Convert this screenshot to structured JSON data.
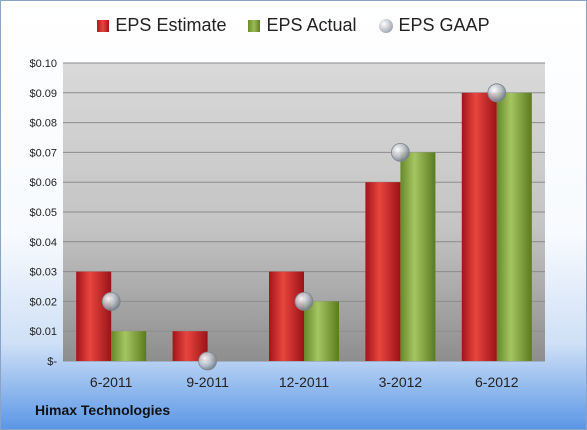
{
  "company": "Himax Technologies",
  "legend": {
    "estimate": "EPS Estimate",
    "actual": "EPS Actual",
    "gaap": "EPS GAAP"
  },
  "colors": {
    "estimate": "#c0252a",
    "actual": "#8fb04a",
    "gaap": "#aeb4bc"
  },
  "chart_data": {
    "type": "bar",
    "categories": [
      "6-2011",
      "9-2011",
      "12-2011",
      "3-2012",
      "6-2012"
    ],
    "series": [
      {
        "name": "EPS Estimate",
        "values": [
          0.03,
          0.01,
          0.03,
          0.06,
          0.09
        ]
      },
      {
        "name": "EPS Actual",
        "values": [
          0.01,
          0.0,
          0.02,
          0.07,
          0.09
        ]
      },
      {
        "name": "EPS GAAP",
        "type": "scatter",
        "values": [
          0.02,
          0.0,
          0.02,
          0.07,
          0.09
        ]
      }
    ],
    "yticks": [
      "$-",
      "$0.01",
      "$0.02",
      "$0.03",
      "$0.04",
      "$0.05",
      "$0.06",
      "$0.07",
      "$0.08",
      "$0.09",
      "$0.10"
    ],
    "ylim": [
      0,
      0.1
    ],
    "legend_position": "top",
    "grid": true
  }
}
